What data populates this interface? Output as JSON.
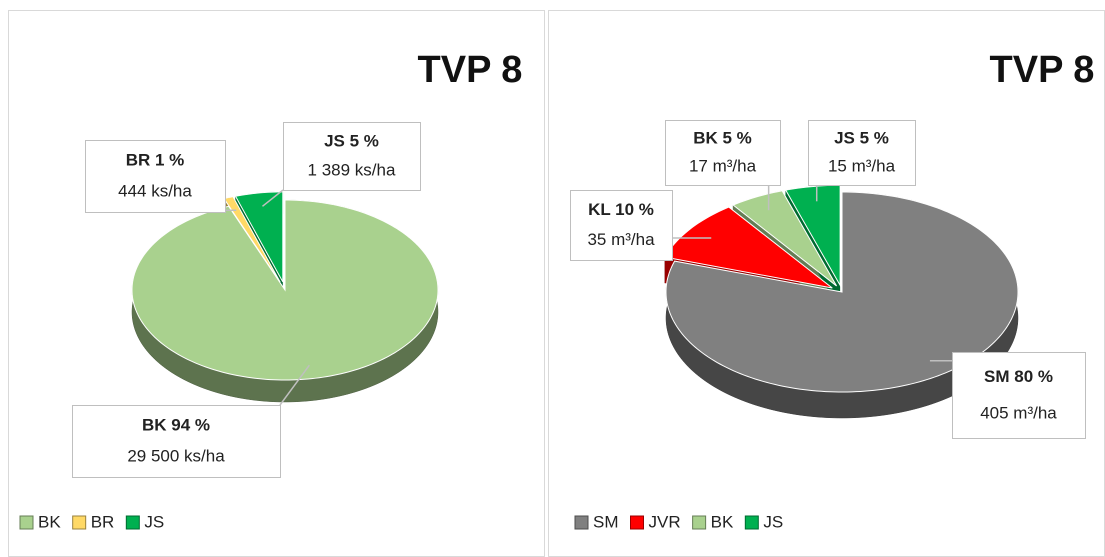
{
  "chart_data": [
    {
      "type": "pie",
      "title": "TVP 8",
      "categories": [
        "BK",
        "BR",
        "JS"
      ],
      "values": [
        94,
        1,
        5
      ],
      "value_labels": [
        "94 %",
        "1 %",
        "5 %"
      ],
      "amount_labels": [
        "29 500 ks/ha",
        "444 ks/ha",
        "1 389 ks/ha"
      ],
      "colors": [
        "#a9d18e",
        "#ffd966",
        "#00b050"
      ],
      "legend": "bottom"
    },
    {
      "type": "pie",
      "title": "TVP 8",
      "categories": [
        "SM",
        "JVR",
        "BK",
        "JS"
      ],
      "label_names": [
        "SM",
        "KL",
        "BK",
        "JS"
      ],
      "values": [
        80,
        10,
        5,
        5
      ],
      "value_labels": [
        "80 %",
        "10 %",
        "5 %",
        "5 %"
      ],
      "amount_labels": [
        "405 m³/ha",
        "35 m³/ha",
        "17 m³/ha",
        "15 m³/ha"
      ],
      "colors": [
        "#808080",
        "#ff0000",
        "#a9d18e",
        "#00b050"
      ],
      "legend": "bottom"
    }
  ]
}
